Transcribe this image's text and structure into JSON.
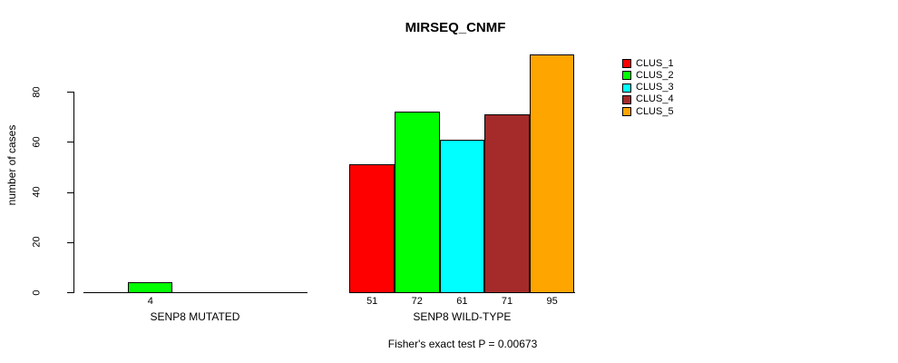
{
  "chart_data": {
    "type": "bar",
    "title": "MIRSEQ_CNMF",
    "ylabel": "number of cases",
    "xlabel": "",
    "ylim": [
      0,
      95
    ],
    "yticks": [
      0,
      20,
      40,
      60,
      80
    ],
    "grid": false,
    "legend_position": "top-right",
    "categories": [
      "SENP8 MUTATED",
      "SENP8 WILD-TYPE"
    ],
    "series": [
      {
        "name": "CLUS_1",
        "color": "#FF0000",
        "values": [
          0,
          51
        ]
      },
      {
        "name": "CLUS_2",
        "color": "#00FF00",
        "values": [
          4,
          72
        ]
      },
      {
        "name": "CLUS_3",
        "color": "#00FFFF",
        "values": [
          0,
          61
        ]
      },
      {
        "name": "CLUS_4",
        "color": "#A52A2A",
        "values": [
          0,
          71
        ]
      },
      {
        "name": "CLUS_5",
        "color": "#FFA500",
        "values": [
          0,
          95
        ]
      }
    ],
    "bar_value_labels": [
      [
        "",
        "4",
        "",
        "",
        ""
      ],
      [
        "51",
        "72",
        "61",
        "71",
        "95"
      ]
    ],
    "caption": "Fisher's exact test P = 0.00673",
    "axis_color": "#000000",
    "background_color": "#FFFFFF"
  }
}
